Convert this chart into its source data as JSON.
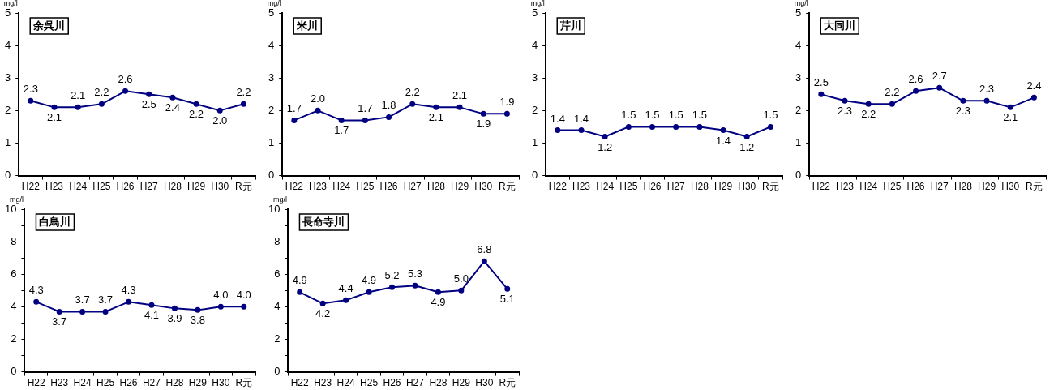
{
  "chart_data": [
    {
      "type": "line",
      "title": "余呉川",
      "ylabel": "mg/l",
      "categories": [
        "H22",
        "H23",
        "H24",
        "H25",
        "H26",
        "H27",
        "H28",
        "H29",
        "H30",
        "R元"
      ],
      "series": [
        {
          "color": "#000080",
          "values": [
            2.3,
            2.1,
            2.1,
            2.2,
            2.6,
            2.5,
            2.4,
            2.2,
            2.0,
            2.2
          ],
          "value_labels": [
            "2.3",
            "2.1",
            "2.1",
            "2.2",
            "2.6",
            "2.5",
            "2.4",
            "2.2",
            "2.0",
            "2.2"
          ]
        }
      ],
      "ylim": [
        0,
        5
      ],
      "yticks": [
        0,
        1,
        2,
        3,
        4,
        5
      ],
      "grid": false,
      "legend": false,
      "marker": "circle"
    },
    {
      "type": "line",
      "title": "米川",
      "ylabel": "mg/l",
      "categories": [
        "H22",
        "H23",
        "H24",
        "H25",
        "H26",
        "H27",
        "H28",
        "H29",
        "H30",
        "R元"
      ],
      "series": [
        {
          "color": "#000080",
          "values": [
            1.7,
            2.0,
            1.7,
            1.7,
            1.8,
            2.2,
            2.1,
            2.1,
            1.9,
            1.9
          ],
          "value_labels": [
            "1.7",
            "2.0",
            "1.7",
            "1.7",
            "1.8",
            "2.2",
            "2.1",
            "2.1",
            "1.9",
            "1.9"
          ]
        }
      ],
      "ylim": [
        0,
        5
      ],
      "yticks": [
        0,
        1,
        2,
        3,
        4,
        5
      ],
      "grid": false,
      "legend": false,
      "marker": "circle"
    },
    {
      "type": "line",
      "title": "芹川",
      "ylabel": "mg/l",
      "categories": [
        "H22",
        "H23",
        "H24",
        "H25",
        "H26",
        "H27",
        "H28",
        "H29",
        "H30",
        "R元"
      ],
      "series": [
        {
          "color": "#000080",
          "values": [
            1.4,
            1.4,
            1.2,
            1.5,
            1.5,
            1.5,
            1.5,
            1.4,
            1.2,
            1.5
          ],
          "value_labels": [
            "1.4",
            "1.4",
            "1.2",
            "1.5",
            "1.5",
            "1.5",
            "1.5",
            "1.4",
            "1.2",
            "1.5"
          ]
        }
      ],
      "ylim": [
        0,
        5
      ],
      "yticks": [
        0,
        1,
        2,
        3,
        4,
        5
      ],
      "grid": false,
      "legend": false,
      "marker": "circle"
    },
    {
      "type": "line",
      "title": "大同川",
      "ylabel": "mg/l",
      "categories": [
        "H22",
        "H23",
        "H24",
        "H25",
        "H26",
        "H27",
        "H28",
        "H29",
        "H30",
        "R元"
      ],
      "series": [
        {
          "color": "#000080",
          "values": [
            2.5,
            2.3,
            2.2,
            2.2,
            2.6,
            2.7,
            2.3,
            2.3,
            2.1,
            2.4
          ],
          "value_labels": [
            "2.5",
            "2.3",
            "2.2",
            "2.2",
            "2.6",
            "2.7",
            "2.3",
            "2.3",
            "2.1",
            "2.4"
          ]
        }
      ],
      "ylim": [
        0,
        5
      ],
      "yticks": [
        0,
        1,
        2,
        3,
        4,
        5
      ],
      "grid": false,
      "legend": false,
      "marker": "circle"
    },
    {
      "type": "line",
      "title": "白鳥川",
      "ylabel": "mg/l",
      "categories": [
        "H22",
        "H23",
        "H24",
        "H25",
        "H26",
        "H27",
        "H28",
        "H29",
        "H30",
        "R元"
      ],
      "series": [
        {
          "color": "#000080",
          "values": [
            4.3,
            3.7,
            3.7,
            3.7,
            4.3,
            4.1,
            3.9,
            3.8,
            4.0,
            4.0
          ],
          "value_labels": [
            "4.3",
            "3.7",
            "3.7",
            "3.7",
            "4.3",
            "4.1",
            "3.9",
            "3.8",
            "4.0",
            "4.0"
          ]
        }
      ],
      "ylim": [
        0,
        10
      ],
      "yticks": [
        0,
        {
          "value": 1,
          "label": null
        },
        2,
        {
          "value": 3,
          "label": null
        },
        4,
        {
          "value": 5,
          "label": null
        },
        6,
        {
          "value": 7,
          "label": null
        },
        8,
        {
          "value": 9,
          "label": null
        },
        10
      ],
      "grid": false,
      "legend": false,
      "marker": "circle"
    },
    {
      "type": "line",
      "title": "長命寺川",
      "ylabel": "mg/l",
      "categories": [
        "H22",
        "H23",
        "H24",
        "H25",
        "H26",
        "H27",
        "H28",
        "H29",
        "H30",
        "R元"
      ],
      "series": [
        {
          "color": "#000080",
          "values": [
            4.9,
            4.2,
            4.4,
            4.9,
            5.2,
            5.3,
            4.9,
            5.0,
            6.8,
            5.1
          ],
          "value_labels": [
            "4.9",
            "4.2",
            "4.4",
            "4.9",
            "5.2",
            "5.3",
            "4.9",
            "5.0",
            "6.8",
            "5.1"
          ]
        }
      ],
      "ylim": [
        0,
        10
      ],
      "yticks": [
        0,
        {
          "value": 1,
          "label": null
        },
        2,
        {
          "value": 3,
          "label": null
        },
        4,
        {
          "value": 5,
          "label": null
        },
        6,
        {
          "value": 7,
          "label": null
        },
        8,
        {
          "value": 9,
          "label": null
        },
        10
      ],
      "grid": false,
      "legend": false,
      "marker": "circle"
    }
  ]
}
